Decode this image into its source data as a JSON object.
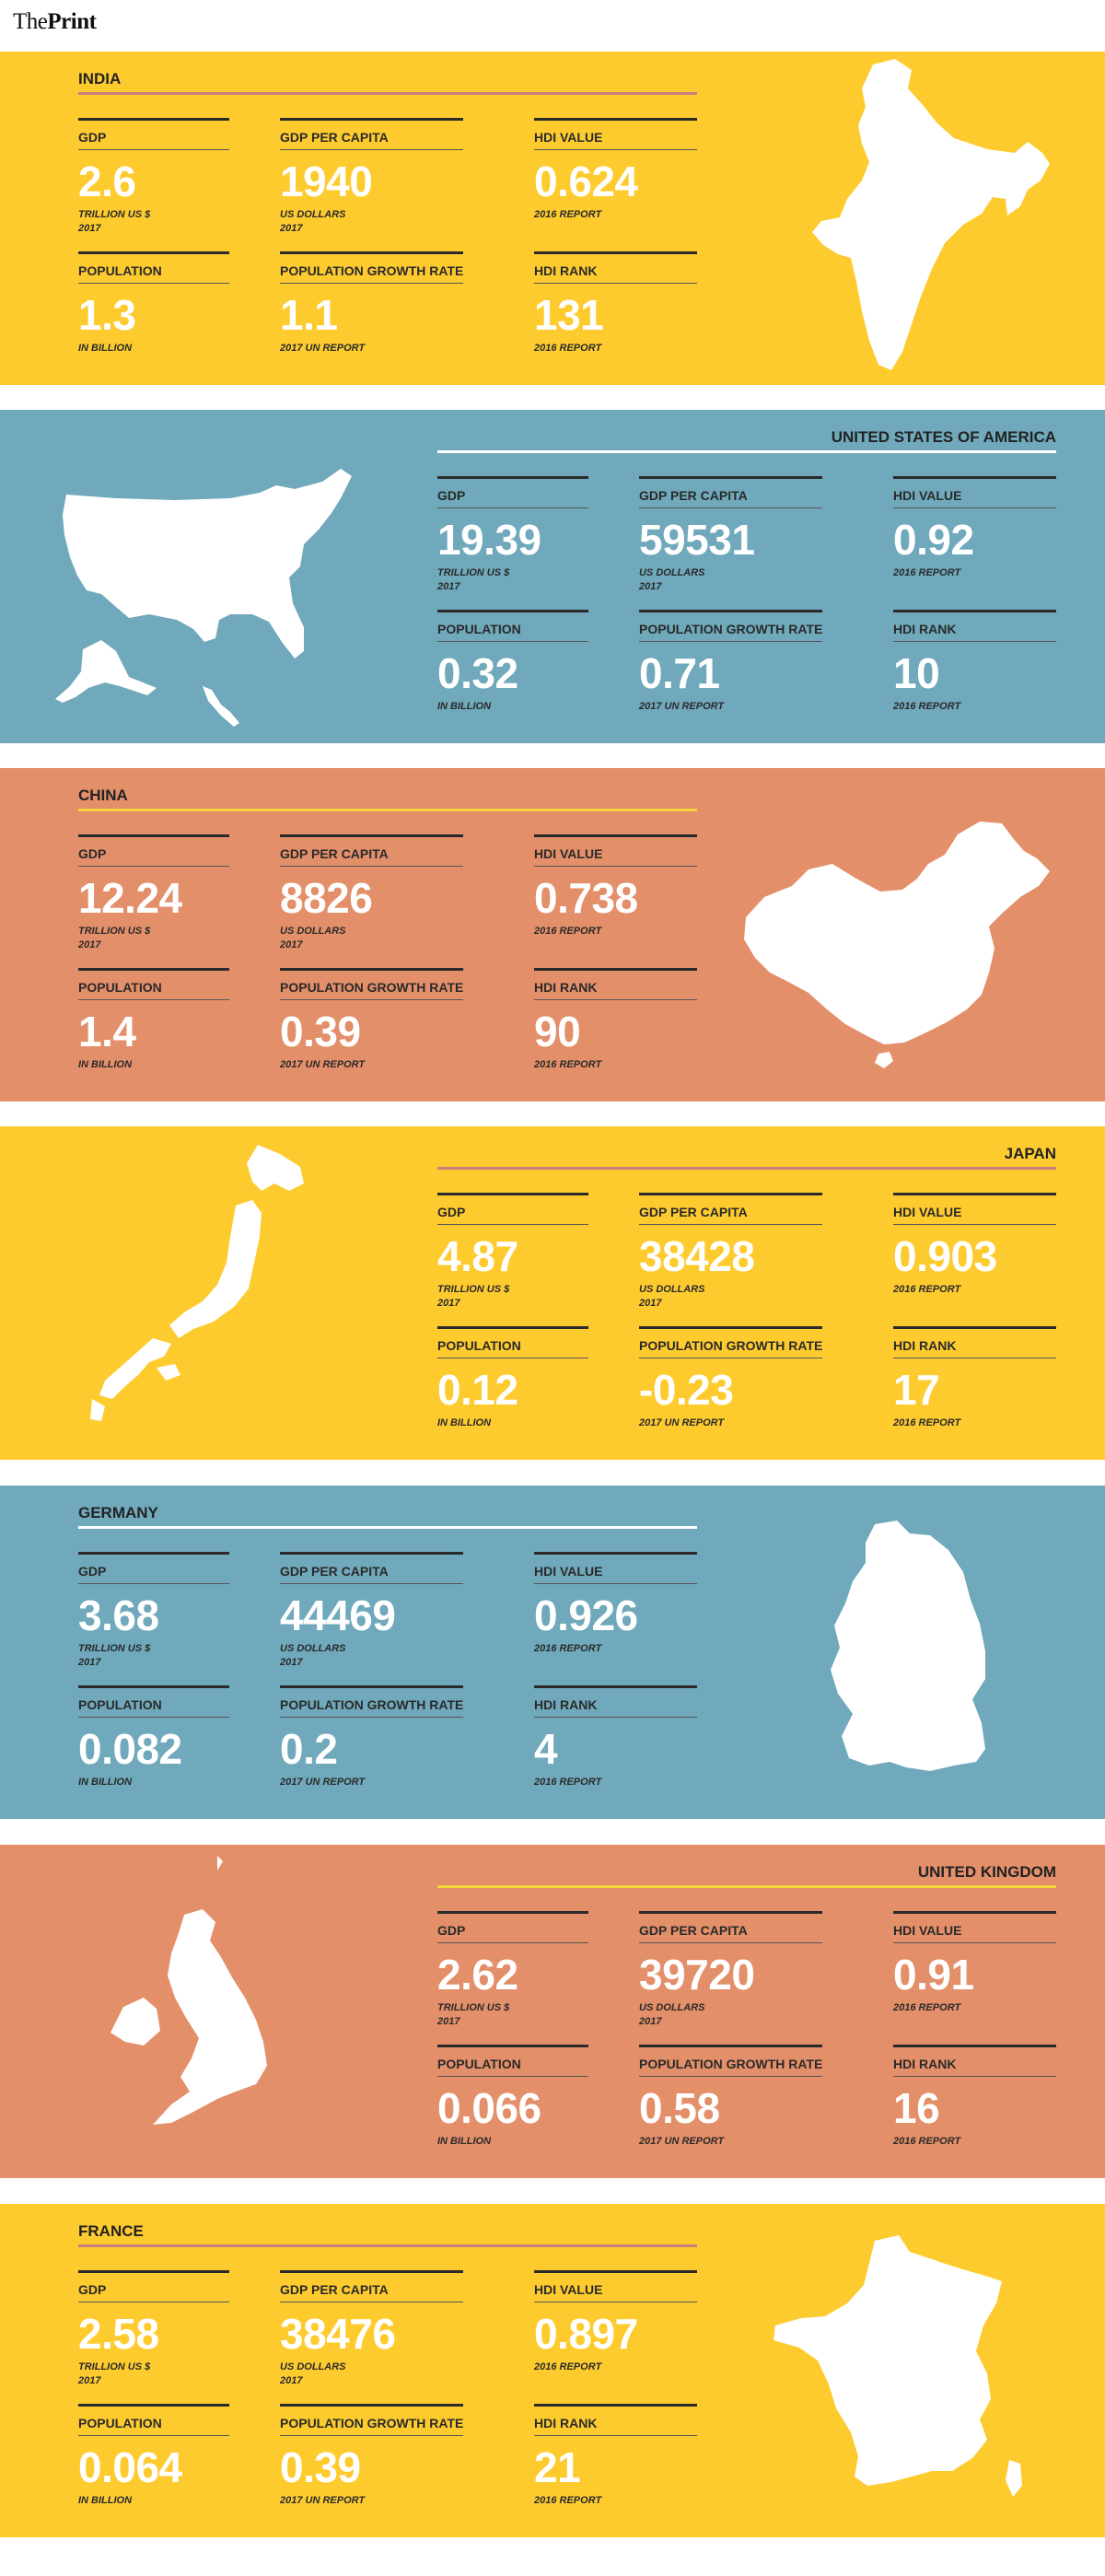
{
  "brand": {
    "logo_light": "The",
    "logo_bold": "Print"
  },
  "labels": {
    "gdp": "GDP",
    "gdp_per_capita": "GDP PER CAPITA",
    "hdi_value": "HDI VALUE",
    "population": "POPULATION",
    "population_growth_rate": "POPULATION GROWTH RATE",
    "hdi_rank": "HDI RANK"
  },
  "notes": {
    "gdp": "TRILLION US $\n2017",
    "gdp_per_capita": "US DOLLARS\n2017",
    "hdi_value": "2016 REPORT",
    "population": "IN BILLION",
    "population_growth_rate": "2017 UN REPORT",
    "hdi_rank": "2016 REPORT"
  },
  "colors": {
    "yellow": "#FECB2F",
    "blue": "#6FA9BB",
    "orange": "#E38F69",
    "rule_pink": "#C7807E",
    "rule_white": "#FFFFFF",
    "rule_yellow": "#F4D43A"
  },
  "countries": [
    {
      "name": "INDIA",
      "gdp": "2.6",
      "gdp_per_capita": "1940",
      "hdi_value": "0.624",
      "population": "1.3",
      "population_growth_rate": "1.1",
      "hdi_rank": "131",
      "map_icon": "india-map-icon"
    },
    {
      "name": "UNITED STATES OF AMERICA",
      "gdp": "19.39",
      "gdp_per_capita": "59531",
      "hdi_value": "0.92",
      "population": "0.32",
      "population_growth_rate": "0.71",
      "hdi_rank": "10",
      "map_icon": "usa-map-icon"
    },
    {
      "name": "CHINA",
      "gdp": "12.24",
      "gdp_per_capita": "8826",
      "hdi_value": "0.738",
      "population": "1.4",
      "population_growth_rate": "0.39",
      "hdi_rank": "90",
      "map_icon": "china-map-icon"
    },
    {
      "name": "JAPAN",
      "gdp": "4.87",
      "gdp_per_capita": "38428",
      "hdi_value": "0.903",
      "population": "0.12",
      "population_growth_rate": "-0.23",
      "hdi_rank": "17",
      "map_icon": "japan-map-icon"
    },
    {
      "name": "GERMANY",
      "gdp": "3.68",
      "gdp_per_capita": "44469",
      "hdi_value": "0.926",
      "population": "0.082",
      "population_growth_rate": "0.2",
      "hdi_rank": "4",
      "map_icon": "germany-map-icon"
    },
    {
      "name": "UNITED KINGDOM",
      "gdp": "2.62",
      "gdp_per_capita": "39720",
      "hdi_value": "0.91",
      "population": "0.066",
      "population_growth_rate": "0.58",
      "hdi_rank": "16",
      "map_icon": "uk-map-icon"
    },
    {
      "name": "FRANCE",
      "gdp": "2.58",
      "gdp_per_capita": "38476",
      "hdi_value": "0.897",
      "population": "0.064",
      "population_growth_rate": "0.39",
      "hdi_rank": "21",
      "map_icon": "france-map-icon"
    }
  ]
}
